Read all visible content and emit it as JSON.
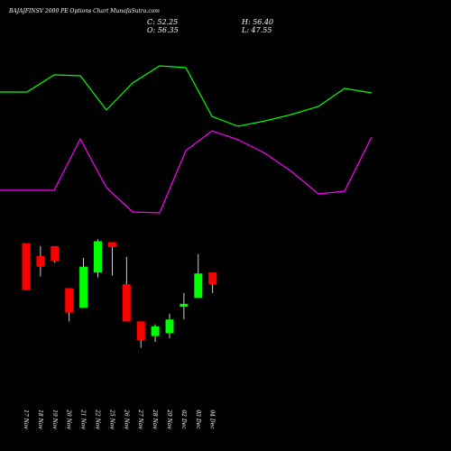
{
  "header": {
    "title": "BAJAJFINSV 2000 PE Options Chart MunafaSutra.com",
    "close_label": "C: 52.25",
    "open_label": "O: 56.35",
    "high_label": "H: 56.40",
    "low_label": "L: 47.55"
  },
  "chart_data": {
    "type": "candlestick",
    "categories": [
      "17 Nov",
      "18 Nov",
      "19 Nov",
      "20 Nov",
      "21 Nov",
      "22 Nov",
      "25 Nov",
      "26 Nov",
      "27 Nov",
      "28 Nov",
      "29 Nov",
      "02 Dec",
      "03 Dec",
      "04 Dec"
    ],
    "candles": [
      {
        "open": 141,
        "close": 93,
        "high": 141,
        "low": 93
      },
      {
        "open": 128,
        "close": 117,
        "high": 138,
        "low": 107
      },
      {
        "open": 138,
        "close": 123,
        "high": 138,
        "low": 121
      },
      {
        "open": 95,
        "close": 70,
        "high": 95,
        "low": 61
      },
      {
        "open": 75,
        "close": 117,
        "high": 126,
        "low": 75
      },
      {
        "open": 111,
        "close": 143,
        "high": 145,
        "low": 106
      },
      {
        "open": 142,
        "close": 137,
        "high": 142,
        "low": 108
      },
      {
        "open": 99,
        "close": 61,
        "high": 127,
        "low": 61
      },
      {
        "open": 61,
        "close": 42,
        "high": 61,
        "low": 34
      },
      {
        "open": 46,
        "close": 56,
        "high": 58,
        "low": 40
      },
      {
        "open": 49,
        "close": 63,
        "high": 69,
        "low": 44
      },
      {
        "open": 76,
        "close": 79,
        "high": 90,
        "low": 63
      },
      {
        "open": 85,
        "close": 110,
        "high": 130,
        "low": 85
      },
      {
        "open": 111,
        "close": 99,
        "high": 111,
        "low": 90
      }
    ],
    "colors": {
      "up": "#00ff00",
      "down": "#ff0000",
      "background": "#000000",
      "upper_line": "#00ff00",
      "lower_line": "#ff00ff"
    },
    "upper_line": [
      102,
      102,
      83,
      84,
      122,
      92,
      73,
      75,
      129,
      140,
      134,
      127,
      118,
      98,
      103
    ],
    "lower_line": [
      211,
      211,
      211,
      154,
      208,
      235,
      236,
      167,
      145,
      155,
      170,
      190,
      215,
      212,
      152
    ]
  }
}
